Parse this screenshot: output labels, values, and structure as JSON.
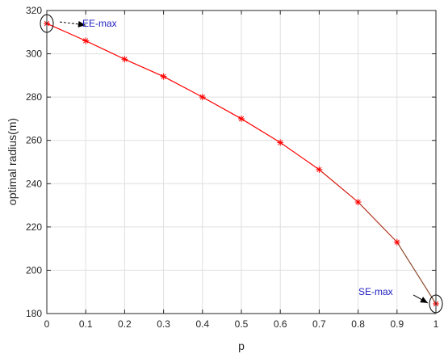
{
  "chart_data": {
    "type": "line",
    "xlabel": "p",
    "ylabel": "optimal radius(m)",
    "xlim": [
      0,
      1
    ],
    "ylim": [
      180,
      320
    ],
    "x_ticks": [
      "0",
      "0.1",
      "0.2",
      "0.3",
      "0.4",
      "0.5",
      "0.6",
      "0.7",
      "0.8",
      "0.9",
      "1"
    ],
    "y_ticks": [
      "180",
      "200",
      "220",
      "240",
      "260",
      "280",
      "300",
      "320"
    ],
    "grid": true,
    "x": [
      0,
      0.1,
      0.2,
      0.3,
      0.4,
      0.5,
      0.6,
      0.7,
      0.8,
      0.9,
      1.0
    ],
    "y": [
      314,
      306,
      297.5,
      289.5,
      280,
      270,
      259,
      246.5,
      231.5,
      213,
      184.5
    ],
    "line_color_start": "#ff0000",
    "line_color_end": "#8b4a2b",
    "marker_color": "#ff0000",
    "annotations": [
      {
        "text": "EE-max",
        "point_x": 0,
        "point_y": 314,
        "color": "#1f1fbf"
      },
      {
        "text": "SE-max",
        "point_x": 1.0,
        "point_y": 184.5,
        "color": "#1f1fbf"
      }
    ]
  }
}
